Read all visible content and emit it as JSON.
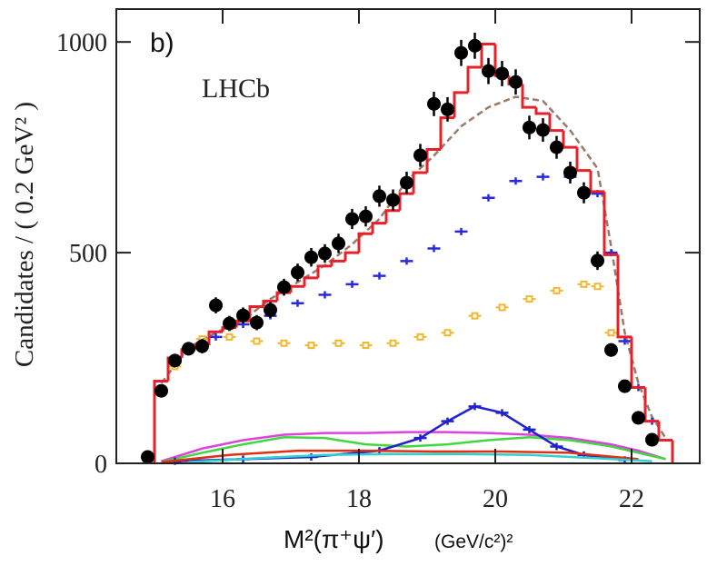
{
  "chart_data": {
    "type": "scatter",
    "annotations": [
      "b)",
      "LHCb"
    ],
    "y_label": "Candidates / ( 0.2 GeV² )",
    "x_label": "M²(π⁺ψ′)",
    "x_label_unit": "(GeV/c²)²",
    "xlim": [
      14.44,
      23.0
    ],
    "ylim": [
      0,
      1078
    ],
    "xticks": [
      16,
      18,
      20,
      22
    ],
    "yticks": [
      0,
      500,
      1000
    ],
    "series": [
      {
        "type": "step",
        "color": "#e8202a",
        "bins": [
          15,
          15.2,
          15.4,
          15.6,
          15.8,
          16,
          16.2,
          16.4,
          16.6,
          16.8,
          17,
          17.2,
          17.4,
          17.6,
          17.8,
          18,
          18.2,
          18.4,
          18.6,
          18.8,
          19,
          19.2,
          19.4,
          19.6,
          19.8,
          20,
          20.2,
          20.4,
          20.6,
          20.8,
          21,
          21.2,
          21.4,
          21.6,
          21.8,
          22,
          22.2,
          22.4,
          22.6
        ],
        "values": [
          195,
          250,
          270,
          280,
          312,
          322,
          338,
          372,
          385,
          405,
          420,
          440,
          468,
          480,
          500,
          545,
          570,
          600,
          640,
          690,
          745,
          820,
          880,
          940,
          995,
          920,
          900,
          845,
          830,
          790,
          750,
          695,
          645,
          495,
          300,
          180,
          100,
          55
        ]
      },
      {
        "type": "line",
        "color": "#9a7a66",
        "dash": true,
        "marker": "none",
        "x": [
          15.1,
          15.5,
          15.9,
          16.3,
          16.7,
          17.1,
          17.5,
          17.9,
          18.3,
          18.7,
          19.1,
          19.5,
          19.9,
          20.3,
          20.7,
          21.1,
          21.5,
          21.7,
          21.9,
          22.1,
          22.3,
          22.5
        ],
        "values": [
          190,
          275,
          310,
          340,
          390,
          430,
          470,
          520,
          580,
          670,
          730,
          800,
          845,
          870,
          860,
          790,
          700,
          515,
          310,
          190,
          110,
          60
        ]
      },
      {
        "type": "line",
        "color": "#2a2ad8",
        "marker": "plus",
        "connect": false,
        "x": [
          15.5,
          15.9,
          16.3,
          16.7,
          17.1,
          17.5,
          17.9,
          18.3,
          18.7,
          19.1,
          19.5,
          19.9,
          20.3,
          20.7,
          21.1,
          21.5,
          21.7,
          21.9,
          22.1,
          22.3
        ],
        "values": [
          270,
          300,
          330,
          350,
          380,
          400,
          425,
          445,
          480,
          510,
          550,
          630,
          670,
          680,
          680,
          640,
          500,
          290,
          180,
          100
        ]
      },
      {
        "type": "line",
        "color": "#f0b830",
        "marker": "square",
        "connect": false,
        "x": [
          15.3,
          15.7,
          16.1,
          16.5,
          16.9,
          17.3,
          17.7,
          18.1,
          18.5,
          18.9,
          19.3,
          19.7,
          20.1,
          20.5,
          20.9,
          21.3,
          21.5,
          21.7,
          21.9,
          22.1,
          22.3
        ],
        "values": [
          230,
          295,
          300,
          290,
          285,
          280,
          285,
          280,
          285,
          300,
          310,
          350,
          370,
          390,
          410,
          425,
          420,
          310,
          190,
          110,
          60
        ]
      },
      {
        "type": "line",
        "color": "#e040e0",
        "marker": "none",
        "x": [
          15.1,
          15.7,
          16.3,
          16.9,
          17.5,
          18.1,
          18.7,
          19.3,
          19.9,
          20.5,
          21.1,
          21.7,
          22.1,
          22.5
        ],
        "values": [
          5,
          35,
          55,
          68,
          72,
          72,
          74,
          74,
          72,
          68,
          60,
          45,
          30,
          10
        ]
      },
      {
        "type": "line",
        "color": "#40d840",
        "marker": "none",
        "x": [
          15.1,
          15.7,
          16.3,
          16.9,
          17.5,
          18.1,
          18.7,
          19.3,
          19.9,
          20.5,
          21.1,
          21.7,
          22.1,
          22.5
        ],
        "values": [
          3,
          25,
          45,
          62,
          60,
          45,
          40,
          45,
          55,
          62,
          55,
          40,
          25,
          10
        ]
      },
      {
        "type": "line",
        "color": "#2020d0",
        "marker": "plus",
        "connect": true,
        "x": [
          15.3,
          16.3,
          17.3,
          18.3,
          18.9,
          19.3,
          19.7,
          20.1,
          20.5,
          20.9,
          21.3,
          21.9
        ],
        "values": [
          5,
          10,
          15,
          30,
          60,
          100,
          135,
          120,
          80,
          40,
          20,
          8
        ]
      },
      {
        "type": "line",
        "color": "#e03010",
        "marker": "none",
        "x": [
          15.1,
          16.1,
          17.1,
          18.1,
          19.1,
          20.1,
          21.1,
          22.1
        ],
        "values": [
          3,
          20,
          30,
          30,
          28,
          28,
          25,
          10
        ]
      },
      {
        "type": "line",
        "color": "#30d0d0",
        "marker": "none",
        "x": [
          15.5,
          16.5,
          17.5,
          18.5,
          19.5,
          20.5,
          21.5,
          22.3
        ],
        "values": [
          3,
          12,
          20,
          22,
          22,
          20,
          12,
          5
        ]
      },
      {
        "type": "errorbar",
        "color": "#000000",
        "x": [
          14.9,
          15.1,
          15.3,
          15.5,
          15.7,
          15.9,
          16.1,
          16.3,
          16.5,
          16.7,
          16.9,
          17.1,
          17.3,
          17.5,
          17.7,
          17.9,
          18.1,
          18.3,
          18.5,
          18.7,
          18.9,
          19.1,
          19.3,
          19.5,
          19.7,
          19.9,
          20.1,
          20.3,
          20.5,
          20.7,
          20.9,
          21.1,
          21.3,
          21.5,
          21.7,
          21.9,
          22.1,
          22.3
        ],
        "values": [
          15,
          172,
          244,
          272,
          278,
          375,
          332,
          351,
          334,
          364,
          418,
          453,
          489,
          498,
          522,
          580,
          586,
          634,
          625,
          666,
          731,
          853,
          840,
          974,
          991,
          931,
          925,
          905,
          797,
          791,
          750,
          690,
          642,
          481,
          269,
          183,
          108,
          56
        ],
        "errors": [
          4,
          13,
          16,
          16,
          17,
          19,
          18,
          19,
          18,
          19,
          20,
          21,
          22,
          22,
          23,
          24,
          24,
          25,
          25,
          26,
          27,
          29,
          29,
          31,
          31,
          31,
          30,
          30,
          28,
          28,
          27,
          26,
          25,
          22,
          16,
          14,
          10,
          7
        ]
      }
    ]
  }
}
